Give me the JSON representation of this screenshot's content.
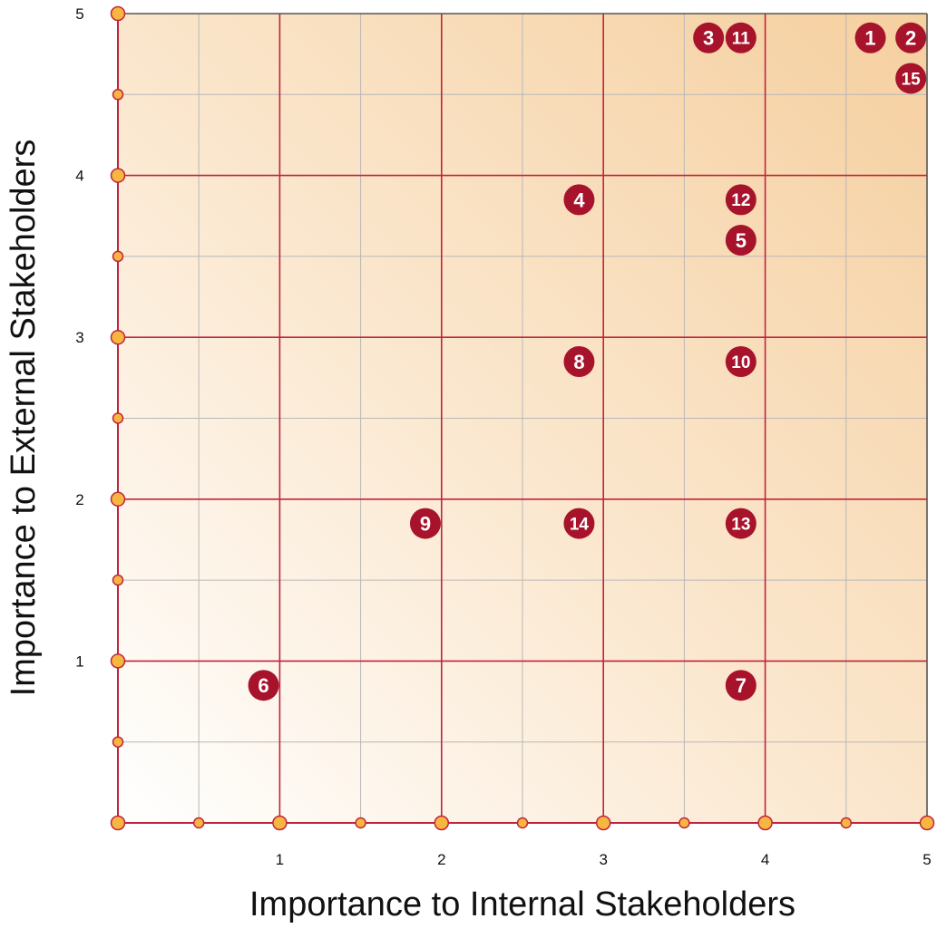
{
  "chart_data": {
    "type": "scatter",
    "title": "",
    "xlabel": "Importance to Internal Stakeholders",
    "ylabel": "Importance to External Stakeholders",
    "xlim": [
      0,
      5
    ],
    "ylim": [
      0,
      5
    ],
    "x_ticks": [
      "1",
      "2",
      "3",
      "4",
      "5"
    ],
    "y_ticks": [
      "1",
      "2",
      "3",
      "4",
      "5"
    ],
    "grid": true,
    "legend": "none",
    "points": [
      {
        "label": "1",
        "x": 4.65,
        "y": 4.85
      },
      {
        "label": "2",
        "x": 4.9,
        "y": 4.85
      },
      {
        "label": "3",
        "x": 3.65,
        "y": 4.85
      },
      {
        "label": "4",
        "x": 2.85,
        "y": 3.85
      },
      {
        "label": "5",
        "x": 3.85,
        "y": 3.6
      },
      {
        "label": "6",
        "x": 0.9,
        "y": 0.85
      },
      {
        "label": "7",
        "x": 3.85,
        "y": 0.85
      },
      {
        "label": "8",
        "x": 2.85,
        "y": 2.85
      },
      {
        "label": "9",
        "x": 1.9,
        "y": 1.85
      },
      {
        "label": "10",
        "x": 3.85,
        "y": 2.85
      },
      {
        "label": "11",
        "x": 3.85,
        "y": 4.85
      },
      {
        "label": "12",
        "x": 3.85,
        "y": 3.85
      },
      {
        "label": "13",
        "x": 3.85,
        "y": 1.85
      },
      {
        "label": "14",
        "x": 2.85,
        "y": 1.85
      },
      {
        "label": "15",
        "x": 4.9,
        "y": 4.6
      }
    ],
    "colors": {
      "marker_fill": "#a8132c",
      "marker_text": "#ffffff",
      "major_grid": "#c0243c",
      "minor_grid": "#b8b8b8",
      "tick_dot_fill": "#f7b640",
      "tick_dot_stroke": "#c0243c",
      "gradient_start": "#ffffff",
      "gradient_end": "#f5cf9f"
    }
  }
}
